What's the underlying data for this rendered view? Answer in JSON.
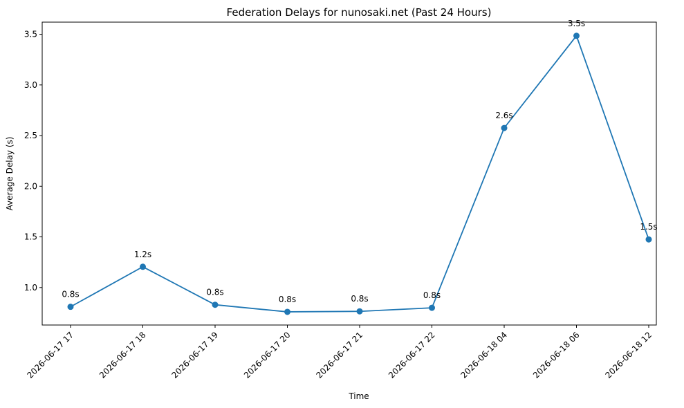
{
  "chart_data": {
    "type": "line",
    "title": "Federation Delays for nunosaki.net (Past 24 Hours)",
    "xlabel": "Time",
    "ylabel": "Average Delay (s)",
    "categories": [
      "2026-06-17 17",
      "2026-06-17 18",
      "2026-06-17 19",
      "2026-06-17 20",
      "2026-06-17 21",
      "2026-06-17 22",
      "2026-06-18 04",
      "2026-06-18 06",
      "2026-06-18 12"
    ],
    "series": [
      {
        "values": [
          0.81,
          1.205,
          0.83,
          0.76,
          0.765,
          0.8,
          2.575,
          3.485,
          1.475
        ],
        "labels": [
          "0.8s",
          "1.2s",
          "0.8s",
          "0.8s",
          "0.8s",
          "0.8s",
          "2.6s",
          "3.5s",
          "1.5s"
        ],
        "color": "#1f77b4"
      }
    ],
    "ylim": [
      0.63,
      3.62
    ],
    "yticks": [
      1.0,
      1.5,
      2.0,
      2.5,
      3.0,
      3.5
    ],
    "ytick_labels": [
      "1.0",
      "1.5",
      "2.0",
      "2.5",
      "3.0",
      "3.5"
    ],
    "grid": false,
    "legend": "none"
  }
}
